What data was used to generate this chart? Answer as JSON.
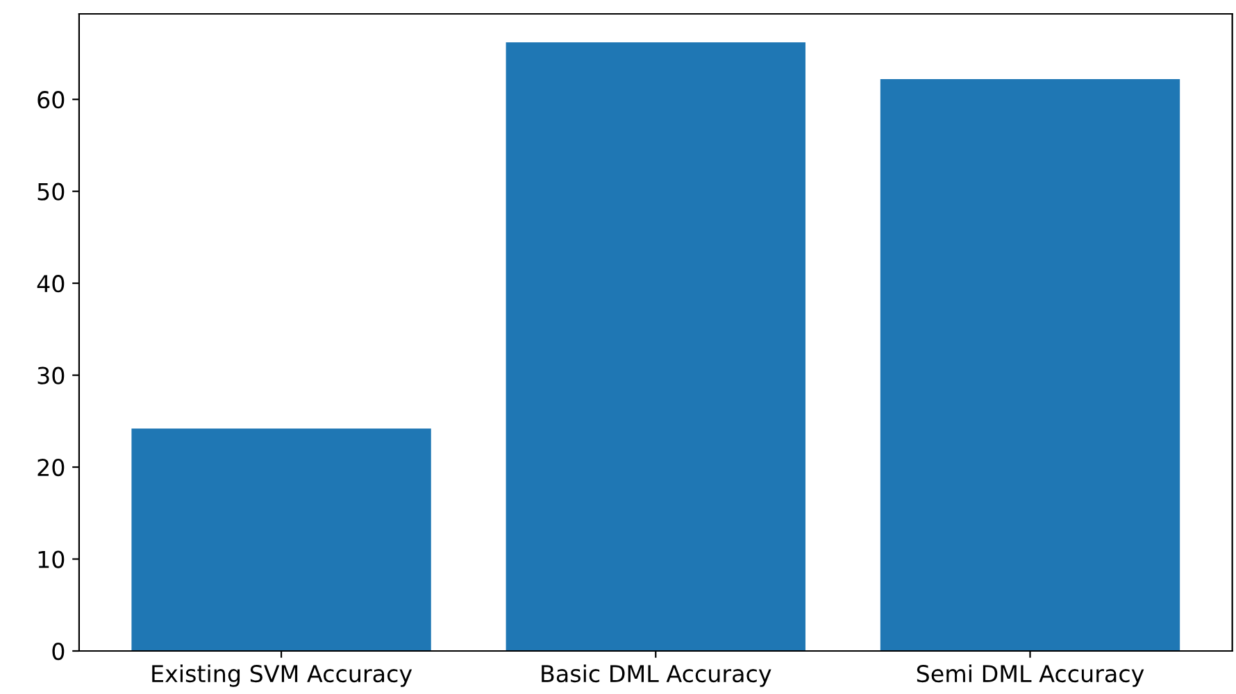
{
  "chart_data": {
    "type": "bar",
    "categories": [
      "Existing SVM Accuracy",
      "Basic DML Accuracy",
      "Semi DML Accuracy"
    ],
    "values": [
      24.2,
      66.2,
      62.2
    ],
    "color": "#1f77b4",
    "ylim": [
      0,
      69.3
    ],
    "yticks": [
      0,
      10,
      20,
      30,
      40,
      50,
      60
    ],
    "grid": false
  }
}
